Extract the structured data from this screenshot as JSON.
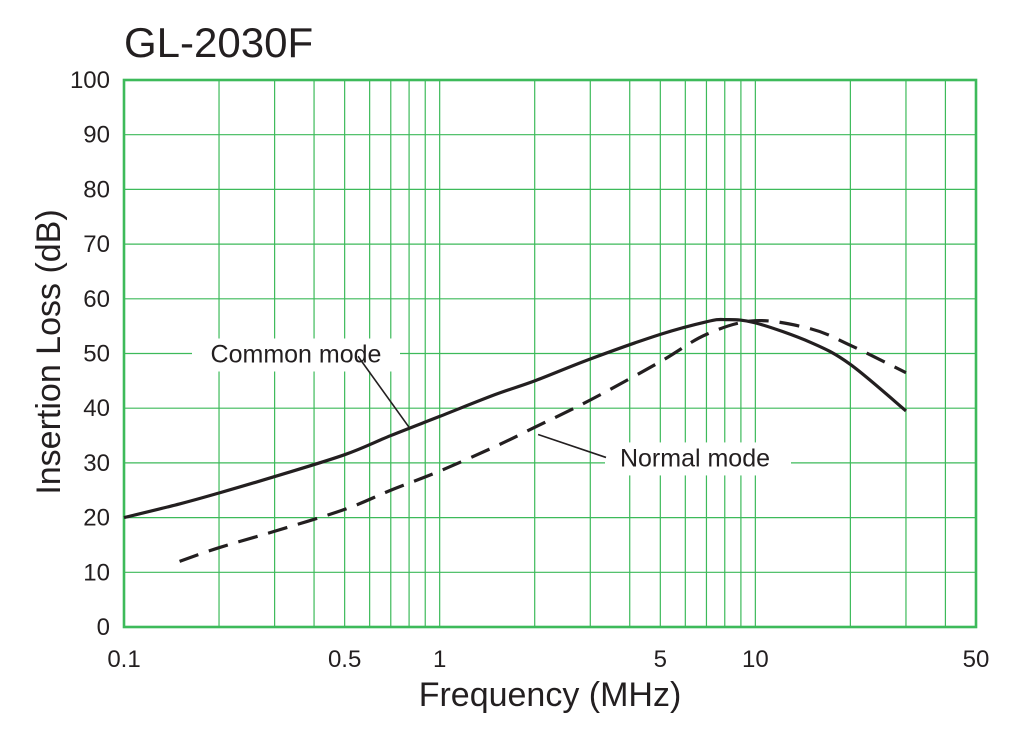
{
  "chart_data": {
    "type": "line",
    "title": "GL-2030F",
    "xlabel": "Frequency (MHz)",
    "ylabel": "Insertion Loss (dB)",
    "x_scale": "log",
    "xlim": [
      0.1,
      50
    ],
    "ylim": [
      0,
      100
    ],
    "x_tick_labels": [
      "0.1",
      "0.5",
      "1",
      "5",
      "10",
      "50"
    ],
    "x_tick_values": [
      0.1,
      0.5,
      1,
      5,
      10,
      50
    ],
    "y_tick_labels": [
      "0",
      "10",
      "20",
      "30",
      "40",
      "50",
      "60",
      "70",
      "80",
      "90",
      "100"
    ],
    "y_tick_values": [
      0,
      10,
      20,
      30,
      40,
      50,
      60,
      70,
      80,
      90,
      100
    ],
    "grid": true,
    "colors": {
      "grid": "#3dba5a",
      "curve": "#231f20",
      "text": "#231f20"
    },
    "series": [
      {
        "name": "Common mode",
        "style": "solid",
        "x": [
          0.1,
          0.15,
          0.2,
          0.3,
          0.5,
          0.7,
          1,
          1.5,
          2,
          3,
          5,
          7,
          8,
          10,
          15,
          20,
          30
        ],
        "y": [
          20,
          22.5,
          24.5,
          27.5,
          31.5,
          35,
          38.5,
          42.5,
          45,
          49,
          53.5,
          55.8,
          56.2,
          55.6,
          52,
          48,
          39.5
        ]
      },
      {
        "name": "Normal mode",
        "style": "dashed",
        "x": [
          0.15,
          0.2,
          0.3,
          0.5,
          0.7,
          1,
          1.5,
          2,
          3,
          5,
          7,
          10,
          15,
          20,
          30
        ],
        "y": [
          12,
          14.5,
          17.5,
          21.5,
          25,
          28.5,
          33,
          36.5,
          41.5,
          48.5,
          53.5,
          56,
          54.5,
          51.5,
          46.5
        ]
      }
    ],
    "annotations": [
      {
        "text": "Common mode",
        "series": "Common mode"
      },
      {
        "text": "Normal mode",
        "series": "Normal mode"
      }
    ]
  }
}
